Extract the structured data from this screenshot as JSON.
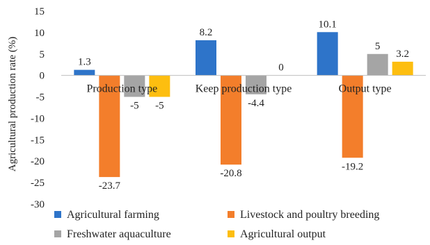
{
  "chart_data": {
    "type": "bar",
    "title": "",
    "xlabel": "",
    "ylabel": "Agricultural production rate (%)",
    "ylim": [
      -30,
      15
    ],
    "ytick_step": 5,
    "grid": false,
    "legend_position": "bottom",
    "categories": [
      "Production type",
      "Keep production type",
      "Output type"
    ],
    "series": [
      {
        "name": "Agricultural farming",
        "color": "#2E74C9",
        "values": [
          1.3,
          8.2,
          10.1
        ]
      },
      {
        "name": "Livestock and poultry breeding",
        "color": "#F37E2B",
        "values": [
          -23.7,
          -20.8,
          -19.2
        ]
      },
      {
        "name": "Freshwater aquaculture",
        "color": "#A5A5A5",
        "values": [
          -5,
          -4.4,
          5
        ]
      },
      {
        "name": "Agricultural output",
        "color": "#FDBE10",
        "values": [
          -5,
          0,
          3.2
        ]
      }
    ]
  }
}
